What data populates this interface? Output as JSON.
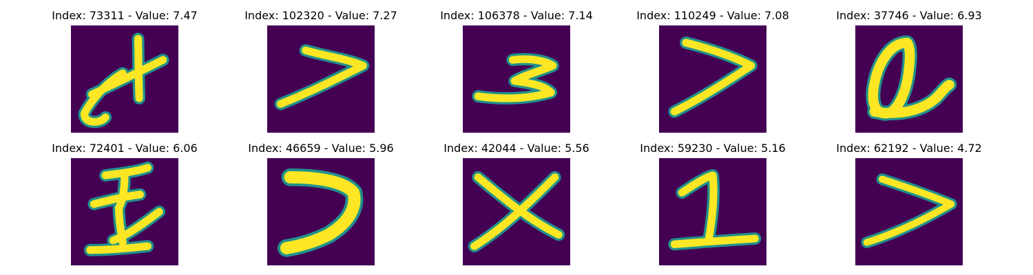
{
  "colors": {
    "background": "#440154",
    "stroke_edge": "#21918c",
    "stroke_core": "#fde725"
  },
  "panels": [
    {
      "index": "73311",
      "value": "7.47",
      "title": "Index: 73311 - Value: 7.47",
      "glyph": "x-like-stroke"
    },
    {
      "index": "102320",
      "value": "7.27",
      "title": "Index: 102320 - Value: 7.27",
      "glyph": "greater-than-stroke"
    },
    {
      "index": "106378",
      "value": "7.14",
      "title": "Index: 106378 - Value: 7.14",
      "glyph": "three-like-stroke"
    },
    {
      "index": "110249",
      "value": "7.08",
      "title": "Index: 110249 - Value: 7.08",
      "glyph": "greater-than-stroke"
    },
    {
      "index": "37746",
      "value": "6.93",
      "title": "Index: 37746 - Value: 6.93",
      "glyph": "a-like-stroke"
    },
    {
      "index": "72401",
      "value": "6.06",
      "title": "Index: 72401 - Value: 6.06",
      "glyph": "crossed-stroke"
    },
    {
      "index": "46659",
      "value": "5.96",
      "title": "Index: 46659 - Value: 5.96",
      "glyph": "thick-greater-than-stroke"
    },
    {
      "index": "42044",
      "value": "5.56",
      "title": "Index: 42044 - Value: 5.56",
      "glyph": "x-stroke"
    },
    {
      "index": "59230",
      "value": "5.16",
      "title": "Index: 59230 - Value: 5.16",
      "glyph": "one-like-stroke"
    },
    {
      "index": "62192",
      "value": "4.72",
      "title": "Index: 62192 - Value: 4.72",
      "glyph": "greater-than-stroke"
    }
  ]
}
